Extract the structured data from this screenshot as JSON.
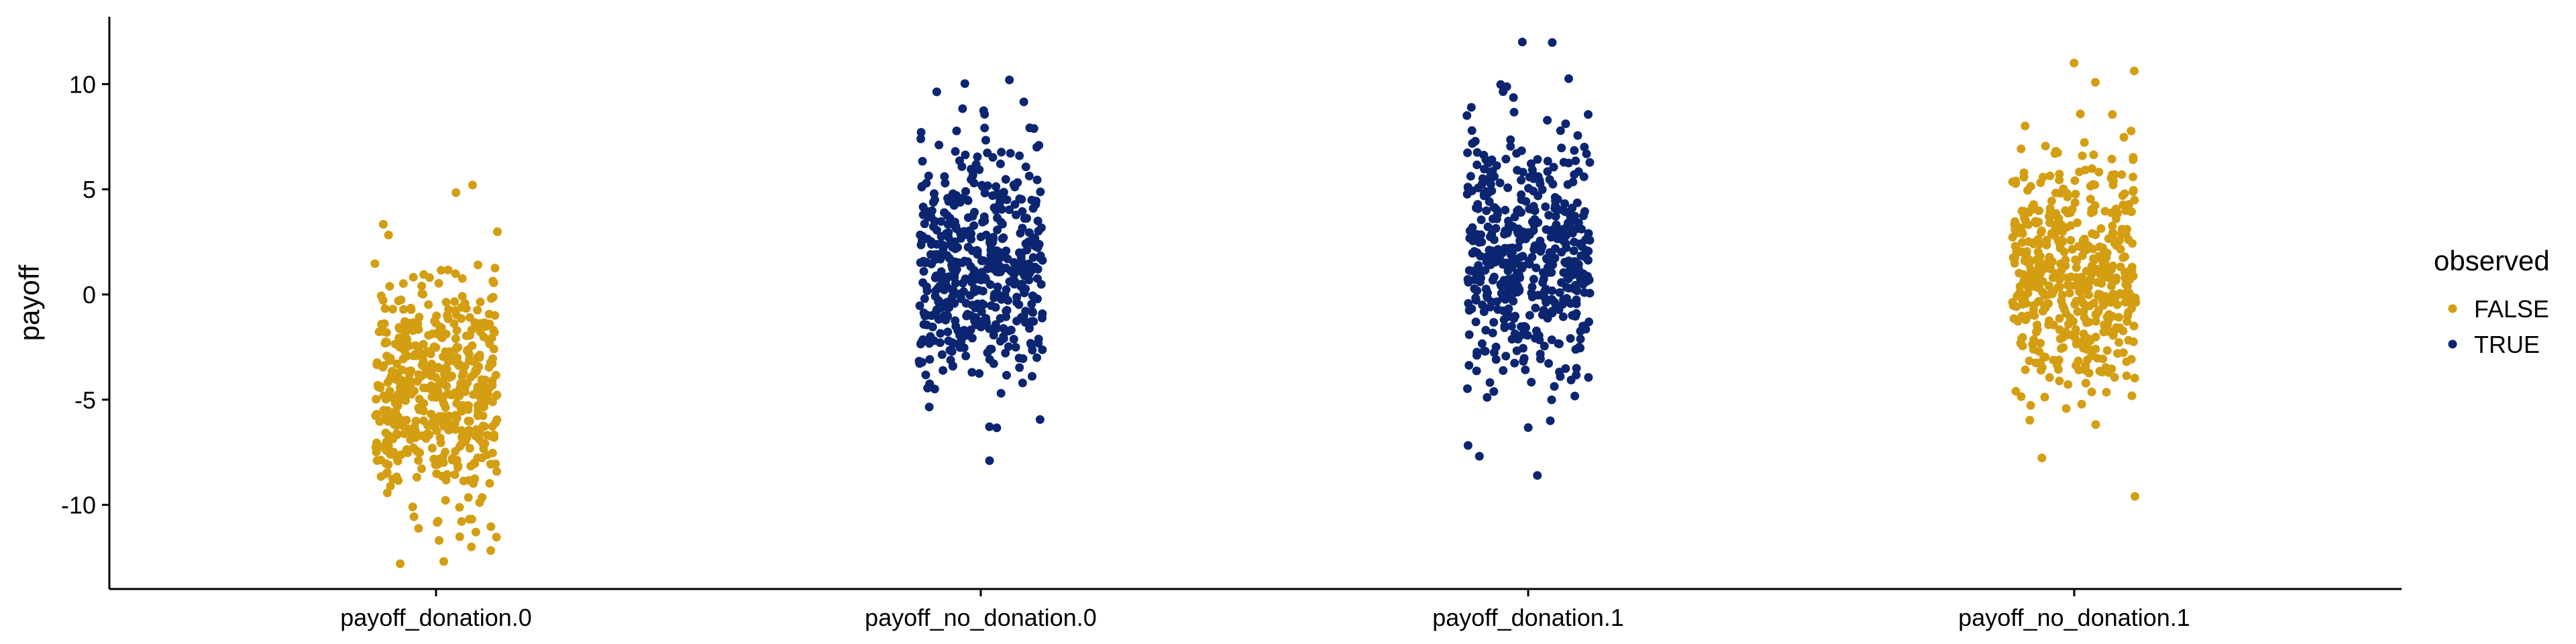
{
  "chart_data": {
    "type": "scatter",
    "subtype": "jitter-strip",
    "title": "",
    "xlabel": "",
    "ylabel": "payoff",
    "ylim": [
      -14,
      13.2
    ],
    "yticks": [
      -10,
      -5,
      0,
      5,
      10
    ],
    "ytick_labels": [
      "-10",
      "-5",
      "0",
      "5",
      "10"
    ],
    "categories": [
      "payoff_donation.0",
      "payoff_no_donation.0",
      "payoff_donation.1",
      "payoff_no_donation.1"
    ],
    "grid": false,
    "legend": {
      "title": "observed",
      "placement": "right",
      "entries": [
        {
          "label": "FALSE",
          "color": "#D49E12"
        },
        {
          "label": "TRUE",
          "color": "#0B2570"
        }
      ]
    },
    "groups": [
      {
        "category": "payoff_donation.0",
        "observed": "FALSE",
        "color": "#D49E12",
        "n": 500,
        "center": -4.5,
        "spread": 2.9,
        "min": -12.8,
        "max": 5.2
      },
      {
        "category": "payoff_no_donation.0",
        "observed": "TRUE",
        "color": "#0B2570",
        "n": 500,
        "center": 1.5,
        "spread": 2.9,
        "min": -7.9,
        "max": 10.2
      },
      {
        "category": "payoff_donation.1",
        "observed": "TRUE",
        "color": "#0B2570",
        "n": 500,
        "center": 1.8,
        "spread": 2.9,
        "min": -8.6,
        "max": 12.0
      },
      {
        "category": "payoff_no_donation.1",
        "observed": "FALSE",
        "color": "#D49E12",
        "n": 500,
        "center": 1.0,
        "spread": 2.9,
        "min": -9.6,
        "max": 11.0
      }
    ]
  }
}
